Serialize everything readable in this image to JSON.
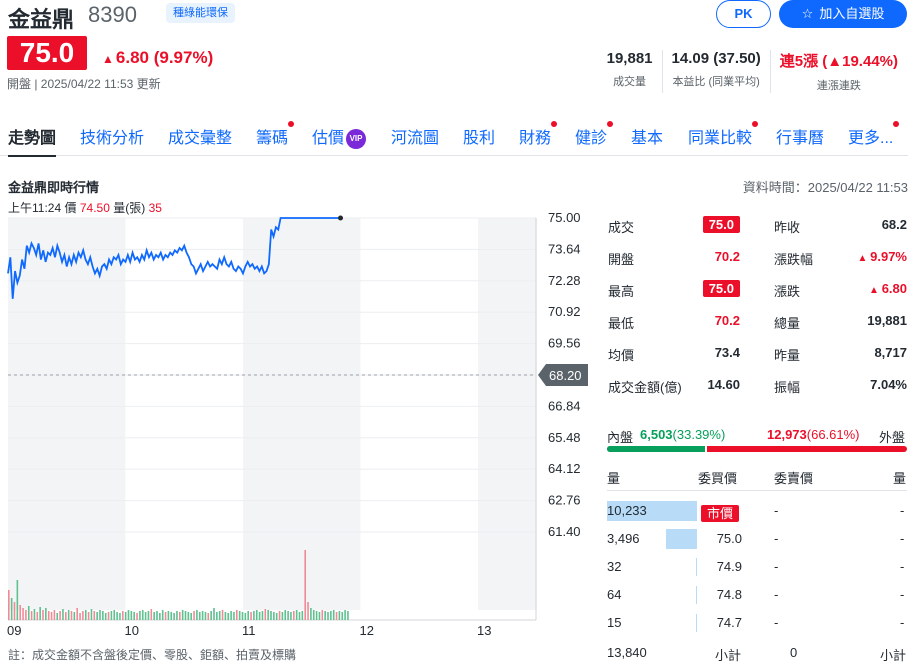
{
  "header": {
    "name": "金益鼎",
    "code": "8390",
    "tag": "種綠能環保",
    "pk_label": "PK",
    "add_label": "加入自選股",
    "price": "75.0",
    "change": "6.80 (9.97%)",
    "status": "開盤 | 2025/04/22 11:53 更新"
  },
  "stats": [
    {
      "value": "19,881",
      "label": "成交量"
    },
    {
      "value": "14.09 (37.50)",
      "label": "本益比 (同業平均)"
    },
    {
      "value_prefix": "連5漲",
      "value": "19.44%",
      "label": "連漲連跌"
    }
  ],
  "tabs": [
    {
      "label": "走勢圖",
      "active": true,
      "dot": false
    },
    {
      "label": "技術分析",
      "dot": false
    },
    {
      "label": "成交彙整",
      "dot": false
    },
    {
      "label": "籌碼",
      "dot": true
    },
    {
      "label": "估價",
      "dot": false,
      "vip": "VIP"
    },
    {
      "label": "河流圖",
      "dot": false
    },
    {
      "label": "股利",
      "dot": false
    },
    {
      "label": "財務",
      "dot": true
    },
    {
      "label": "健診",
      "dot": true
    },
    {
      "label": "基本",
      "dot": false
    },
    {
      "label": "同業比較",
      "dot": true
    },
    {
      "label": "行事曆",
      "dot": false
    },
    {
      "label": "更多...",
      "dot": true
    }
  ],
  "section": {
    "title": "金益鼎即時行情",
    "time": "資料時間：2025/04/22 11:53",
    "tip_time": "上午11:24",
    "tip_price_label": "價",
    "tip_price": "74.50",
    "tip_vol_label": "量(張)",
    "tip_vol": "35"
  },
  "chart_data": {
    "type": "line",
    "x_ticks": [
      "09",
      "10",
      "11",
      "12",
      "13"
    ],
    "y_ticks": [
      "75.00",
      "73.64",
      "72.28",
      "70.92",
      "69.56",
      "68.20",
      "66.84",
      "65.48",
      "64.12",
      "62.76",
      "61.40"
    ],
    "ylim": [
      61.4,
      75.0
    ],
    "ref_price": 68.2,
    "ref_label": "68.20",
    "series": [
      {
        "values": [
          [
            9.0,
            72.6
          ],
          [
            9.02,
            73.3
          ],
          [
            9.04,
            71.5
          ],
          [
            9.06,
            72.7
          ],
          [
            9.08,
            72.2
          ],
          [
            9.1,
            72.5
          ],
          [
            9.12,
            73.2
          ],
          [
            9.14,
            72.8
          ],
          [
            9.16,
            73.8
          ],
          [
            9.18,
            73.5
          ],
          [
            9.2,
            73.9
          ],
          [
            9.22,
            73.7
          ],
          [
            9.24,
            73.4
          ],
          [
            9.26,
            73.9
          ],
          [
            9.28,
            73.2
          ],
          [
            9.3,
            73.6
          ],
          [
            9.32,
            73.1
          ],
          [
            9.34,
            73.5
          ],
          [
            9.36,
            73.4
          ],
          [
            9.38,
            73.7
          ],
          [
            9.4,
            73.3
          ],
          [
            9.42,
            73.8
          ],
          [
            9.44,
            73.5
          ],
          [
            9.46,
            73.1
          ],
          [
            9.48,
            73.4
          ],
          [
            9.5,
            72.9
          ],
          [
            9.52,
            73.3
          ],
          [
            9.54,
            73.0
          ],
          [
            9.56,
            73.4
          ],
          [
            9.58,
            73.1
          ],
          [
            9.6,
            73.5
          ],
          [
            9.62,
            73.3
          ],
          [
            9.64,
            73.6
          ],
          [
            9.66,
            73.2
          ],
          [
            9.68,
            73.0
          ],
          [
            9.7,
            73.3
          ],
          [
            9.72,
            72.9
          ],
          [
            9.74,
            72.6
          ],
          [
            9.76,
            72.8
          ],
          [
            9.78,
            72.5
          ],
          [
            9.8,
            72.9
          ],
          [
            9.82,
            73.0
          ],
          [
            9.84,
            72.8
          ],
          [
            9.86,
            73.2
          ],
          [
            9.88,
            73.0
          ],
          [
            9.9,
            73.3
          ],
          [
            9.92,
            73.2
          ],
          [
            9.94,
            73.4
          ],
          [
            9.96,
            73.0
          ],
          [
            9.98,
            73.2
          ],
          [
            10.0,
            73.1
          ],
          [
            10.02,
            73.4
          ],
          [
            10.04,
            73.1
          ],
          [
            10.06,
            73.5
          ],
          [
            10.08,
            73.2
          ],
          [
            10.1,
            73.3
          ],
          [
            10.12,
            73.1
          ],
          [
            10.14,
            73.4
          ],
          [
            10.16,
            73.2
          ],
          [
            10.18,
            73.6
          ],
          [
            10.2,
            73.3
          ],
          [
            10.22,
            73.5
          ],
          [
            10.24,
            73.2
          ],
          [
            10.26,
            73.4
          ],
          [
            10.28,
            73.3
          ],
          [
            10.3,
            73.5
          ],
          [
            10.32,
            73.2
          ],
          [
            10.34,
            73.4
          ],
          [
            10.36,
            73.3
          ],
          [
            10.38,
            73.5
          ],
          [
            10.4,
            73.4
          ],
          [
            10.42,
            73.6
          ],
          [
            10.44,
            73.5
          ],
          [
            10.46,
            73.7
          ],
          [
            10.48,
            73.6
          ],
          [
            10.5,
            73.8
          ],
          [
            10.52,
            73.5
          ],
          [
            10.54,
            73.3
          ],
          [
            10.56,
            73.0
          ],
          [
            10.58,
            72.9
          ],
          [
            10.6,
            72.6
          ],
          [
            10.62,
            72.8
          ],
          [
            10.64,
            73.0
          ],
          [
            10.66,
            72.7
          ],
          [
            10.68,
            72.9
          ],
          [
            10.7,
            73.1
          ],
          [
            10.72,
            72.9
          ],
          [
            10.74,
            73.0
          ],
          [
            10.76,
            72.9
          ],
          [
            10.78,
            72.8
          ],
          [
            10.8,
            73.2
          ],
          [
            10.82,
            73.0
          ],
          [
            10.84,
            73.3
          ],
          [
            10.86,
            73.0
          ],
          [
            10.88,
            72.9
          ],
          [
            10.9,
            73.1
          ],
          [
            10.92,
            72.8
          ],
          [
            10.94,
            72.7
          ],
          [
            10.96,
            72.9
          ],
          [
            10.98,
            72.8
          ],
          [
            11.0,
            72.6
          ],
          [
            11.02,
            72.9
          ],
          [
            11.04,
            73.1
          ],
          [
            11.06,
            72.9
          ],
          [
            11.08,
            73.0
          ],
          [
            11.1,
            72.8
          ],
          [
            11.12,
            72.9
          ],
          [
            11.14,
            72.7
          ],
          [
            11.16,
            72.9
          ],
          [
            11.18,
            72.6
          ],
          [
            11.2,
            72.7
          ],
          [
            11.22,
            73.0
          ],
          [
            11.24,
            74.5
          ],
          [
            11.26,
            74.2
          ],
          [
            11.28,
            74.6
          ],
          [
            11.3,
            74.5
          ],
          [
            11.32,
            75.0
          ],
          [
            11.4,
            75.0
          ],
          [
            11.5,
            75.0
          ],
          [
            11.6,
            75.0
          ],
          [
            11.7,
            75.0
          ],
          [
            11.8,
            75.0
          ],
          [
            11.83,
            75.0
          ]
        ]
      }
    ]
  },
  "quote": {
    "left": [
      {
        "label": "成交",
        "value": "75.0",
        "box": true
      },
      {
        "label": "開盤",
        "value": "70.2",
        "red": true
      },
      {
        "label": "最高",
        "value": "75.0",
        "box": true
      },
      {
        "label": "最低",
        "value": "70.2",
        "red": true
      },
      {
        "label": "均價",
        "value": "73.4"
      },
      {
        "label": "成交金額(億)",
        "value": "14.60"
      }
    ],
    "right": [
      {
        "label": "昨收",
        "value": "68.2"
      },
      {
        "label": "漲跌幅",
        "value": "9.97%",
        "red": true,
        "tri": true
      },
      {
        "label": "漲跌",
        "value": "6.80",
        "red": true,
        "tri": true
      },
      {
        "label": "總量",
        "value": "19,881"
      },
      {
        "label": "昨量",
        "value": "8,717"
      },
      {
        "label": "振幅",
        "value": "7.04%"
      }
    ]
  },
  "inout": {
    "in_label": "內盤",
    "in_value": "6,503",
    "in_pct": "(33.39%)",
    "in_ratio": 0.3339,
    "out_value": "12,973",
    "out_pct": "(66.61%)",
    "out_label": "外盤"
  },
  "orderbook": {
    "h_bid_vol": "量",
    "h_bid_price": "委買價",
    "h_ask_price": "委賣價",
    "h_ask_vol": "量",
    "rows": [
      {
        "bid_vol": "10,233",
        "bid_price": "市價",
        "ask_price": "-",
        "ask_vol": "-",
        "bar": 1.0,
        "market": true
      },
      {
        "bid_vol": "3,496",
        "bid_price": "75.0",
        "ask_price": "-",
        "ask_vol": "-",
        "bar": 0.34
      },
      {
        "bid_vol": "32",
        "bid_price": "74.9",
        "ask_price": "-",
        "ask_vol": "-",
        "bar": 0.0
      },
      {
        "bid_vol": "64",
        "bid_price": "74.8",
        "ask_price": "-",
        "ask_vol": "-",
        "bar": 0.0
      },
      {
        "bid_vol": "15",
        "bid_price": "74.7",
        "ask_price": "-",
        "ask_vol": "-",
        "bar": 0.0
      }
    ],
    "footer_left": "13,840",
    "footer_mid": "小計",
    "footer_right_val": "0",
    "footer_right_label": "小計"
  },
  "footnote": "註：成交金額不含盤後定價、零股、鉅額、拍賣及標購"
}
